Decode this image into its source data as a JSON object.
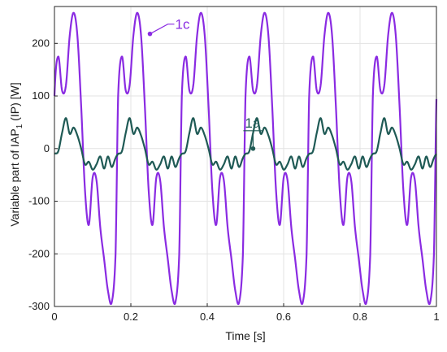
{
  "chart_data": {
    "type": "line",
    "xlabel": "Time [s]",
    "ylabel": {
      "prefix": "Variable part of IAP",
      "subscript": "1",
      "suffix": " (IP)  [W]"
    },
    "xlim": [
      0,
      1
    ],
    "ylim": [
      -300,
      270
    ],
    "xticks": [
      0,
      0.2,
      0.4,
      0.6,
      0.8,
      1
    ],
    "xtick_labels": [
      "0",
      "0.2",
      "0.4",
      "0.6",
      "0.8",
      "1"
    ],
    "yticks": [
      -300,
      -200,
      -100,
      0,
      100,
      200
    ],
    "ytick_labels": [
      "-300",
      "-200",
      "-100",
      "0",
      "100",
      "200"
    ],
    "grid": true,
    "period": 0.1667,
    "series": [
      {
        "name": "1c",
        "color": "#8a2be2",
        "x": [
          0,
          0.01,
          0.02,
          0.03,
          0.04,
          0.05,
          0.06,
          0.07,
          0.08,
          0.09,
          0.1,
          0.11,
          0.12,
          0.13,
          0.14,
          0.15,
          0.16
        ],
        "values": [
          100,
          175,
          110,
          120,
          215,
          258,
          215,
          80,
          -80,
          -145,
          -55,
          -60,
          -150,
          -210,
          -270,
          -292,
          -200
        ]
      },
      {
        "name": "1a",
        "color": "#1f5a55",
        "x": [
          0,
          0.01,
          0.02,
          0.03,
          0.04,
          0.05,
          0.06,
          0.07,
          0.08,
          0.09,
          0.1,
          0.11,
          0.12,
          0.13,
          0.14,
          0.15,
          0.16
        ],
        "values": [
          -10,
          -5,
          30,
          58,
          28,
          40,
          25,
          0,
          -30,
          -25,
          -40,
          -30,
          -15,
          -38,
          -15,
          -35,
          -18
        ]
      }
    ],
    "annotations": [
      {
        "text": "1c",
        "series": "1c",
        "x": 0.25,
        "y": 218
      },
      {
        "text": "1a",
        "series": "1a",
        "x": 0.52,
        "y": 0
      }
    ]
  }
}
